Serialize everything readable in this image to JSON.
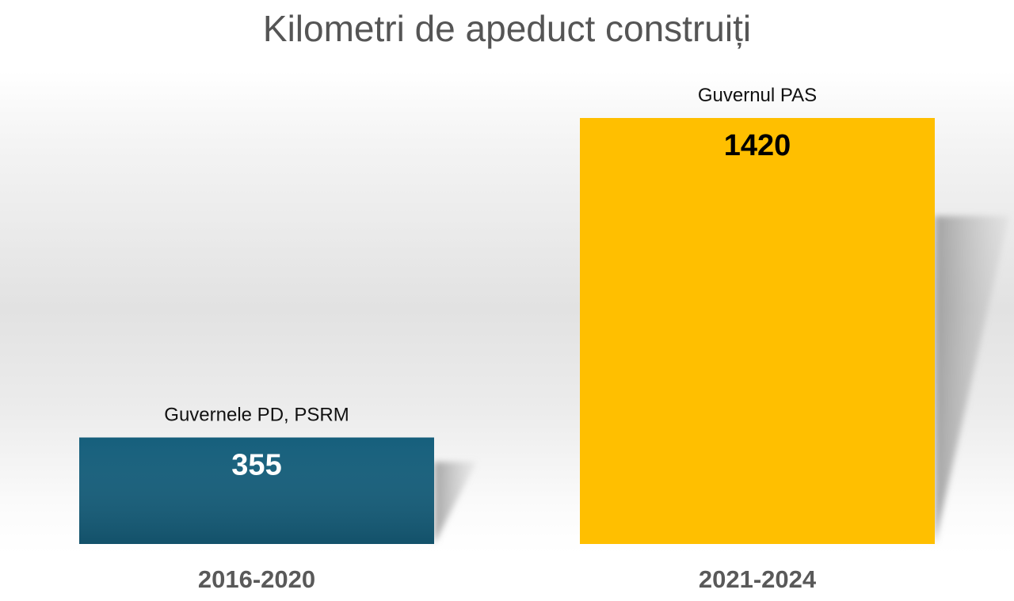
{
  "chart_data": {
    "type": "bar",
    "title": "Kilometri de apeduct construiți",
    "xlabel": "",
    "ylabel": "",
    "categories": [
      "2016-2020",
      "2021-2024"
    ],
    "values": [
      355,
      1420
    ],
    "bar_labels": [
      "Guvernele PD, PSRM",
      "Guvernul PAS"
    ],
    "colors": [
      "#165f7c",
      "#ffbf00"
    ],
    "value_label_colors": [
      "#ffffff",
      "#000000"
    ],
    "ylim": [
      0,
      1420
    ],
    "grid": false,
    "legend": "none"
  }
}
